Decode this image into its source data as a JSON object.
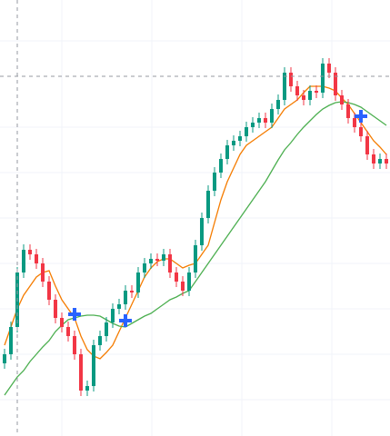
{
  "chart_data": {
    "type": "candlestick",
    "ylim": [
      0,
      480
    ],
    "up_color": "#089981",
    "down_color": "#f23645",
    "opens": [
      80,
      90,
      120,
      180,
      205,
      200,
      190,
      170,
      150,
      130,
      120,
      110,
      90,
      50,
      55,
      100,
      110,
      125,
      140,
      145,
      160,
      158,
      180,
      190,
      195,
      193,
      200,
      180,
      170,
      160,
      180,
      210,
      240,
      270,
      290,
      305,
      320,
      325,
      330,
      340,
      345,
      350,
      345,
      360,
      370,
      400,
      385,
      375,
      370,
      380,
      378,
      410,
      400,
      375,
      365,
      350,
      340,
      330,
      310,
      300,
      305
    ],
    "highs": [
      96,
      126,
      186,
      211,
      211,
      206,
      196,
      176,
      156,
      136,
      126,
      116,
      96,
      61,
      106,
      116,
      131,
      146,
      151,
      166,
      166,
      186,
      196,
      201,
      201,
      206,
      206,
      186,
      176,
      186,
      216,
      246,
      276,
      296,
      311,
      326,
      331,
      336,
      346,
      351,
      356,
      356,
      366,
      376,
      406,
      406,
      391,
      381,
      386,
      386,
      416,
      416,
      406,
      381,
      371,
      356,
      346,
      336,
      316,
      311,
      311
    ],
    "lows": [
      74,
      84,
      114,
      174,
      194,
      184,
      164,
      144,
      124,
      114,
      104,
      84,
      44,
      44,
      49,
      94,
      104,
      119,
      134,
      139,
      152,
      152,
      174,
      184,
      187,
      187,
      174,
      164,
      154,
      154,
      174,
      204,
      234,
      264,
      284,
      299,
      314,
      319,
      324,
      334,
      339,
      339,
      339,
      354,
      364,
      379,
      369,
      364,
      364,
      372,
      372,
      394,
      369,
      359,
      344,
      334,
      324,
      304,
      294,
      294,
      294
    ],
    "closes": [
      90,
      120,
      180,
      205,
      200,
      190,
      170,
      150,
      130,
      120,
      110,
      90,
      50,
      55,
      100,
      110,
      125,
      140,
      145,
      160,
      158,
      180,
      190,
      195,
      193,
      200,
      180,
      170,
      160,
      180,
      210,
      240,
      270,
      290,
      305,
      320,
      325,
      330,
      340,
      345,
      350,
      345,
      360,
      370,
      400,
      385,
      375,
      370,
      380,
      378,
      410,
      400,
      375,
      365,
      350,
      340,
      330,
      310,
      300,
      305,
      300
    ],
    "lines": [
      {
        "color": "#f57c00",
        "values": [
          100,
          120,
          140,
          155,
          165,
          175,
          180,
          182,
          165,
          150,
          140,
          130,
          110,
          95,
          88,
          85,
          92,
          100,
          115,
          130,
          145,
          160,
          175,
          185,
          192,
          195,
          195,
          190,
          185,
          188,
          190,
          200,
          210,
          235,
          260,
          280,
          295,
          310,
          320,
          325,
          330,
          335,
          340,
          350,
          360,
          365,
          370,
          378,
          385,
          385,
          385,
          383,
          380,
          372,
          365,
          355,
          345,
          335,
          325,
          318,
          310
        ]
      },
      {
        "color": "#4caf50",
        "values": [
          45,
          55,
          65,
          72,
          82,
          90,
          98,
          105,
          115,
          122,
          128,
          130,
          132,
          133,
          133,
          132,
          128,
          124,
          121,
          120,
          124,
          128,
          132,
          135,
          140,
          145,
          150,
          153,
          157,
          160,
          170,
          180,
          190,
          200,
          210,
          220,
          230,
          240,
          250,
          260,
          270,
          280,
          292,
          304,
          315,
          323,
          332,
          340,
          347,
          354,
          360,
          364,
          367,
          368,
          367,
          365,
          362,
          357,
          352,
          347,
          342
        ]
      }
    ],
    "markers": {
      "color": "#2962ff",
      "indices": [
        11,
        19,
        56
      ],
      "values": [
        134,
        127,
        352
      ]
    }
  }
}
